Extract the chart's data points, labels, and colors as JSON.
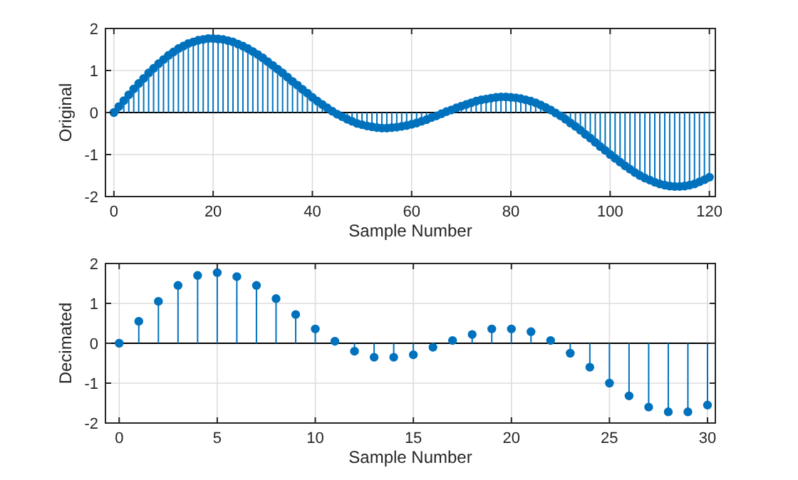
{
  "chart_data": [
    {
      "type": "lollipop",
      "ylabel": "Original",
      "xlabel": "Sample Number",
      "xlim": [
        -1.7,
        121.2
      ],
      "ylim": [
        -2,
        2
      ],
      "xticks": [
        0,
        20,
        40,
        60,
        80,
        100,
        120
      ],
      "yticks": [
        -2,
        -1,
        0,
        1,
        2
      ],
      "grid": true,
      "marker": "circle",
      "x": [
        0,
        1,
        2,
        3,
        4,
        5,
        6,
        7,
        8,
        9,
        10,
        11,
        12,
        13,
        14,
        15,
        16,
        17,
        18,
        19,
        20,
        21,
        22,
        23,
        24,
        25,
        26,
        27,
        28,
        29,
        30,
        31,
        32,
        33,
        34,
        35,
        36,
        37,
        38,
        39,
        40,
        41,
        42,
        43,
        44,
        45,
        46,
        47,
        48,
        49,
        50,
        51,
        52,
        53,
        54,
        55,
        56,
        57,
        58,
        59,
        60,
        61,
        62,
        63,
        64,
        65,
        66,
        67,
        68,
        69,
        70,
        71,
        72,
        73,
        74,
        75,
        76,
        77,
        78,
        79,
        80,
        81,
        82,
        83,
        84,
        85,
        86,
        87,
        88,
        89,
        90,
        91,
        92,
        93,
        94,
        95,
        96,
        97,
        98,
        99,
        100,
        101,
        102,
        103,
        104,
        105,
        106,
        107,
        108,
        109,
        110,
        111,
        112,
        113,
        114,
        115,
        116,
        117,
        118,
        119,
        120
      ],
      "series": [
        {
          "color": "#0072bd",
          "values": [
            0,
            0.14,
            0.28,
            0.42,
            0.56,
            0.69,
            0.81,
            0.94,
            1.05,
            1.16,
            1.26,
            1.36,
            1.44,
            1.52,
            1.58,
            1.64,
            1.68,
            1.72,
            1.74,
            1.76,
            1.76,
            1.75,
            1.74,
            1.71,
            1.68,
            1.63,
            1.58,
            1.52,
            1.45,
            1.38,
            1.3,
            1.21,
            1.12,
            1.03,
            0.94,
            0.84,
            0.74,
            0.65,
            0.55,
            0.46,
            0.36,
            0.27,
            0.19,
            0.11,
            0.03,
            -0.04,
            -0.1,
            -0.16,
            -0.21,
            -0.26,
            -0.29,
            -0.32,
            -0.34,
            -0.36,
            -0.37,
            -0.37,
            -0.36,
            -0.35,
            -0.33,
            -0.31,
            -0.28,
            -0.25,
            -0.21,
            -0.17,
            -0.12,
            -0.08,
            -0.03,
            0.02,
            0.06,
            0.11,
            0.15,
            0.19,
            0.23,
            0.27,
            0.3,
            0.32,
            0.34,
            0.36,
            0.37,
            0.37,
            0.36,
            0.35,
            0.33,
            0.3,
            0.27,
            0.23,
            0.18,
            0.12,
            0.06,
            -0.01,
            -0.08,
            -0.16,
            -0.25,
            -0.33,
            -0.42,
            -0.52,
            -0.61,
            -0.71,
            -0.81,
            -0.9,
            -1,
            -1.09,
            -1.18,
            -1.27,
            -1.35,
            -1.43,
            -1.5,
            -1.56,
            -1.61,
            -1.66,
            -1.7,
            -1.73,
            -1.75,
            -1.76,
            -1.76,
            -1.75,
            -1.73,
            -1.7,
            -1.65,
            -1.6,
            -1.54
          ]
        }
      ]
    },
    {
      "type": "lollipop",
      "ylabel": "Decimated",
      "xlabel": "Sample Number",
      "xlim": [
        -0.7,
        30.4
      ],
      "ylim": [
        -2,
        2
      ],
      "xticks": [
        0,
        5,
        10,
        15,
        20,
        25,
        30
      ],
      "yticks": [
        -2,
        -1,
        0,
        1,
        2
      ],
      "grid": true,
      "marker": "circle",
      "x": [
        0,
        1,
        2,
        3,
        4,
        5,
        6,
        7,
        8,
        9,
        10,
        11,
        12,
        13,
        14,
        15,
        16,
        17,
        18,
        19,
        20,
        21,
        22,
        23,
        24,
        25,
        26,
        27,
        28,
        29,
        30
      ],
      "series": [
        {
          "color": "#0072bd",
          "values": [
            0,
            0.55,
            1.05,
            1.45,
            1.7,
            1.77,
            1.67,
            1.45,
            1.12,
            0.72,
            0.36,
            0.05,
            -0.2,
            -0.35,
            -0.35,
            -0.29,
            -0.1,
            0.07,
            0.22,
            0.36,
            0.36,
            0.29,
            0.07,
            -0.25,
            -0.6,
            -1,
            -1.32,
            -1.6,
            -1.72,
            -1.72,
            -1.55
          ]
        }
      ]
    }
  ]
}
